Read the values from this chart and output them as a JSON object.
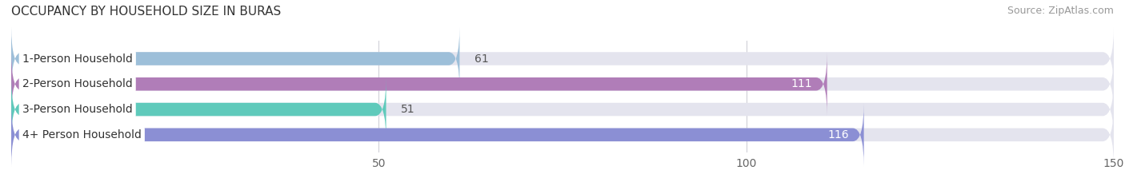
{
  "title": "OCCUPANCY BY HOUSEHOLD SIZE IN BURAS",
  "source": "Source: ZipAtlas.com",
  "categories": [
    "1-Person Household",
    "2-Person Household",
    "3-Person Household",
    "4+ Person Household"
  ],
  "values": [
    61,
    111,
    51,
    116
  ],
  "bar_colors": [
    "#9dbfd9",
    "#b07db8",
    "#5fcabb",
    "#8b8fd4"
  ],
  "bar_background_color": "#e4e4ee",
  "xlim": [
    0,
    150
  ],
  "xticks": [
    50,
    100,
    150
  ],
  "label_color_dark": "#555555",
  "label_color_light": "#ffffff",
  "title_fontsize": 11,
  "source_fontsize": 9,
  "tick_fontsize": 10,
  "bar_label_fontsize": 10,
  "category_fontsize": 10,
  "bar_height": 0.52,
  "background_color": "#ffffff",
  "label_box_color": "#ffffff",
  "grid_color": "#d0d0d8"
}
